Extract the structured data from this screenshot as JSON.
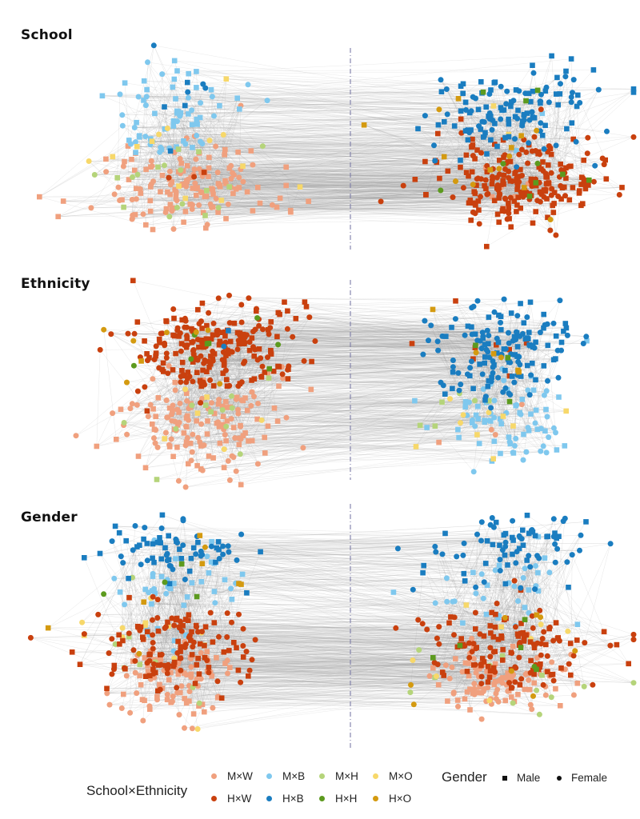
{
  "panels": [
    {
      "title": "School",
      "left_cluster": {
        "M×W": 150,
        "M×B": 70,
        "M×H": 18,
        "M×O": 14,
        "H×W": 3,
        "H×B": 8
      },
      "right_cluster": {
        "H×W": 230,
        "H×B": 130,
        "H×H": 10,
        "H×O": 14,
        "M×W": 6,
        "M×B": 3,
        "M×O": 2
      }
    },
    {
      "title": "Ethnicity",
      "left_cluster": {
        "H×W": 230,
        "M×W": 150,
        "H×H": 8,
        "H×O": 8,
        "M×H": 12,
        "M×O": 6,
        "H×B": 2
      },
      "right_cluster": {
        "H×B": 150,
        "M×B": 75,
        "H×W": 8,
        "H×O": 6,
        "H×H": 3,
        "M×O": 10,
        "M×H": 6,
        "M×W": 4
      }
    },
    {
      "title": "Gender",
      "left_cluster": {
        "H×B": 70,
        "M×B": 45,
        "H×W": 130,
        "M×W": 90,
        "H×O": 8,
        "H×H": 4,
        "M×H": 8,
        "M×O": 12
      },
      "right_cluster": {
        "H×B": 80,
        "M×B": 35,
        "H×W": 140,
        "M×W": 100,
        "H×O": 8,
        "H×H": 6,
        "M×H": 12,
        "M×O": 8
      }
    }
  ],
  "legend": {
    "color_title": "School×Ethnicity",
    "groups": [
      {
        "key": "M×W",
        "label": "M×W",
        "color": "#F0A07E"
      },
      {
        "key": "M×B",
        "label": "M×B",
        "color": "#7FC8EE"
      },
      {
        "key": "M×H",
        "label": "M×H",
        "color": "#B5D47A"
      },
      {
        "key": "M×O",
        "label": "M×O",
        "color": "#F7D86A"
      },
      {
        "key": "H×W",
        "label": "H×W",
        "color": "#C9400E"
      },
      {
        "key": "H×B",
        "label": "H×B",
        "color": "#1A7DC0"
      },
      {
        "key": "H×H",
        "label": "H×H",
        "color": "#5C9A1E"
      },
      {
        "key": "H×O",
        "label": "H×O",
        "color": "#D49A10"
      }
    ],
    "shape_title": "Gender",
    "shapes": [
      {
        "key": "male",
        "label": "Male",
        "shape": "square"
      },
      {
        "key": "female",
        "label": "Female",
        "shape": "circle"
      }
    ]
  },
  "colors": {
    "edge": "#9a9a9a",
    "divider": "#7c7ca8",
    "title": "#111111"
  }
}
